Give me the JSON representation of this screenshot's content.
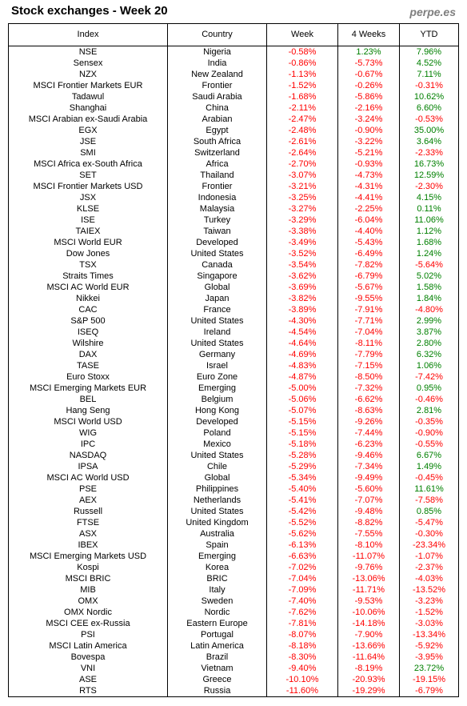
{
  "title": "Stock exchanges - Week 20",
  "brand": "perpe.es",
  "colors": {
    "negative": "#ff0000",
    "positive": "#008000",
    "brand": "#7f7f7f"
  },
  "columns": [
    "Index",
    "Country",
    "Week",
    "4 Weeks",
    "YTD"
  ],
  "rows": [
    [
      "NSE",
      "Nigeria",
      "-0.58%",
      "1.23%",
      "7.96%"
    ],
    [
      "Sensex",
      "India",
      "-0.86%",
      "-5.73%",
      "4.52%"
    ],
    [
      "NZX",
      "New Zealand",
      "-1.13%",
      "-0.67%",
      "7.11%"
    ],
    [
      "MSCI Frontier Markets EUR",
      "Frontier",
      "-1.52%",
      "-0.26%",
      "-0.31%"
    ],
    [
      "Tadawul",
      "Saudi Arabia",
      "-1.68%",
      "-5.86%",
      "10.62%"
    ],
    [
      "Shanghai",
      "China",
      "-2.11%",
      "-2.16%",
      "6.60%"
    ],
    [
      "MSCI Arabian ex-Saudi Arabia",
      "Arabian",
      "-2.47%",
      "-3.24%",
      "-0.53%"
    ],
    [
      "EGX",
      "Egypt",
      "-2.48%",
      "-0.90%",
      "35.00%"
    ],
    [
      "JSE",
      "South Africa",
      "-2.61%",
      "-3.22%",
      "3.64%"
    ],
    [
      "SMI",
      "Switzerland",
      "-2.64%",
      "-5.21%",
      "-2.33%"
    ],
    [
      "MSCI Africa ex-South Africa",
      "Africa",
      "-2.70%",
      "-0.93%",
      "16.73%"
    ],
    [
      "SET",
      "Thailand",
      "-3.07%",
      "-4.73%",
      "12.59%"
    ],
    [
      "MSCI Frontier Markets USD",
      "Frontier",
      "-3.21%",
      "-4.31%",
      "-2.30%"
    ],
    [
      "JSX",
      "Indonesia",
      "-3.25%",
      "-4.41%",
      "4.15%"
    ],
    [
      "KLSE",
      "Malaysia",
      "-3.27%",
      "-2.25%",
      "0.11%"
    ],
    [
      "ISE",
      "Turkey",
      "-3.29%",
      "-6.04%",
      "11.06%"
    ],
    [
      "TAIEX",
      "Taiwan",
      "-3.38%",
      "-4.40%",
      "1.12%"
    ],
    [
      "MSCI World EUR",
      "Developed",
      "-3.49%",
      "-5.43%",
      "1.68%"
    ],
    [
      "Dow Jones",
      "United States",
      "-3.52%",
      "-6.49%",
      "1.24%"
    ],
    [
      "TSX",
      "Canada",
      "-3.54%",
      "-7.82%",
      "-5.64%"
    ],
    [
      "Straits Times",
      "Singapore",
      "-3.62%",
      "-6.79%",
      "5.02%"
    ],
    [
      "MSCI AC World EUR",
      "Global",
      "-3.69%",
      "-5.67%",
      "1.58%"
    ],
    [
      "Nikkei",
      "Japan",
      "-3.82%",
      "-9.55%",
      "1.84%"
    ],
    [
      "CAC",
      "France",
      "-3.89%",
      "-7.91%",
      "-4.80%"
    ],
    [
      "S&P 500",
      "United States",
      "-4.30%",
      "-7.71%",
      "2.99%"
    ],
    [
      "ISEQ",
      "Ireland",
      "-4.54%",
      "-7.04%",
      "3.87%"
    ],
    [
      "Wilshire",
      "United States",
      "-4.64%",
      "-8.11%",
      "2.80%"
    ],
    [
      "DAX",
      "Germany",
      "-4.69%",
      "-7.79%",
      "6.32%"
    ],
    [
      "TASE",
      "Israel",
      "-4.83%",
      "-7.15%",
      "1.06%"
    ],
    [
      "Euro Stoxx",
      "Euro Zone",
      "-4.87%",
      "-8.50%",
      "-7.42%"
    ],
    [
      "MSCI Emerging Markets EUR",
      "Emerging",
      "-5.00%",
      "-7.32%",
      "0.95%"
    ],
    [
      "BEL",
      "Belgium",
      "-5.06%",
      "-6.62%",
      "-0.46%"
    ],
    [
      "Hang Seng",
      "Hong Kong",
      "-5.07%",
      "-8.63%",
      "2.81%"
    ],
    [
      "MSCI World USD",
      "Developed",
      "-5.15%",
      "-9.26%",
      "-0.35%"
    ],
    [
      "WIG",
      "Poland",
      "-5.15%",
      "-7.44%",
      "-0.90%"
    ],
    [
      "IPC",
      "Mexico",
      "-5.18%",
      "-6.23%",
      "-0.55%"
    ],
    [
      "NASDAQ",
      "United States",
      "-5.28%",
      "-9.46%",
      "6.67%"
    ],
    [
      "IPSA",
      "Chile",
      "-5.29%",
      "-7.34%",
      "1.49%"
    ],
    [
      "MSCI AC World USD",
      "Global",
      "-5.34%",
      "-9.49%",
      "-0.45%"
    ],
    [
      "PSE",
      "Philippines",
      "-5.40%",
      "-5.60%",
      "11.61%"
    ],
    [
      "AEX",
      "Netherlands",
      "-5.41%",
      "-7.07%",
      "-7.58%"
    ],
    [
      "Russell",
      "United States",
      "-5.42%",
      "-9.48%",
      "0.85%"
    ],
    [
      "FTSE",
      "United Kingdom",
      "-5.52%",
      "-8.82%",
      "-5.47%"
    ],
    [
      "ASX",
      "Australia",
      "-5.62%",
      "-7.55%",
      "-0.30%"
    ],
    [
      "IBEX",
      "Spain",
      "-6.13%",
      "-8.10%",
      "-23.34%"
    ],
    [
      "MSCI Emerging Markets USD",
      "Emerging",
      "-6.63%",
      "-11.07%",
      "-1.07%"
    ],
    [
      "Kospi",
      "Korea",
      "-7.02%",
      "-9.76%",
      "-2.37%"
    ],
    [
      "MSCI BRIC",
      "BRIC",
      "-7.04%",
      "-13.06%",
      "-4.03%"
    ],
    [
      "MIB",
      "Italy",
      "-7.09%",
      "-11.71%",
      "-13.52%"
    ],
    [
      "OMX",
      "Sweden",
      "-7.40%",
      "-9.53%",
      "-3.23%"
    ],
    [
      "OMX Nordic",
      "Nordic",
      "-7.62%",
      "-10.06%",
      "-1.52%"
    ],
    [
      "MSCI CEE ex-Russia",
      "Eastern Europe",
      "-7.81%",
      "-14.18%",
      "-3.03%"
    ],
    [
      "PSI",
      "Portugal",
      "-8.07%",
      "-7.90%",
      "-13.34%"
    ],
    [
      "MSCI Latin America",
      "Latin America",
      "-8.18%",
      "-13.66%",
      "-5.92%"
    ],
    [
      "Bovespa",
      "Brazil",
      "-8.30%",
      "-11.64%",
      "-3.95%"
    ],
    [
      "VNI",
      "Vietnam",
      "-9.40%",
      "-8.19%",
      "23.72%"
    ],
    [
      "ASE",
      "Greece",
      "-10.10%",
      "-20.93%",
      "-19.15%"
    ],
    [
      "RTS",
      "Russia",
      "-11.60%",
      "-19.29%",
      "-6.79%"
    ]
  ]
}
